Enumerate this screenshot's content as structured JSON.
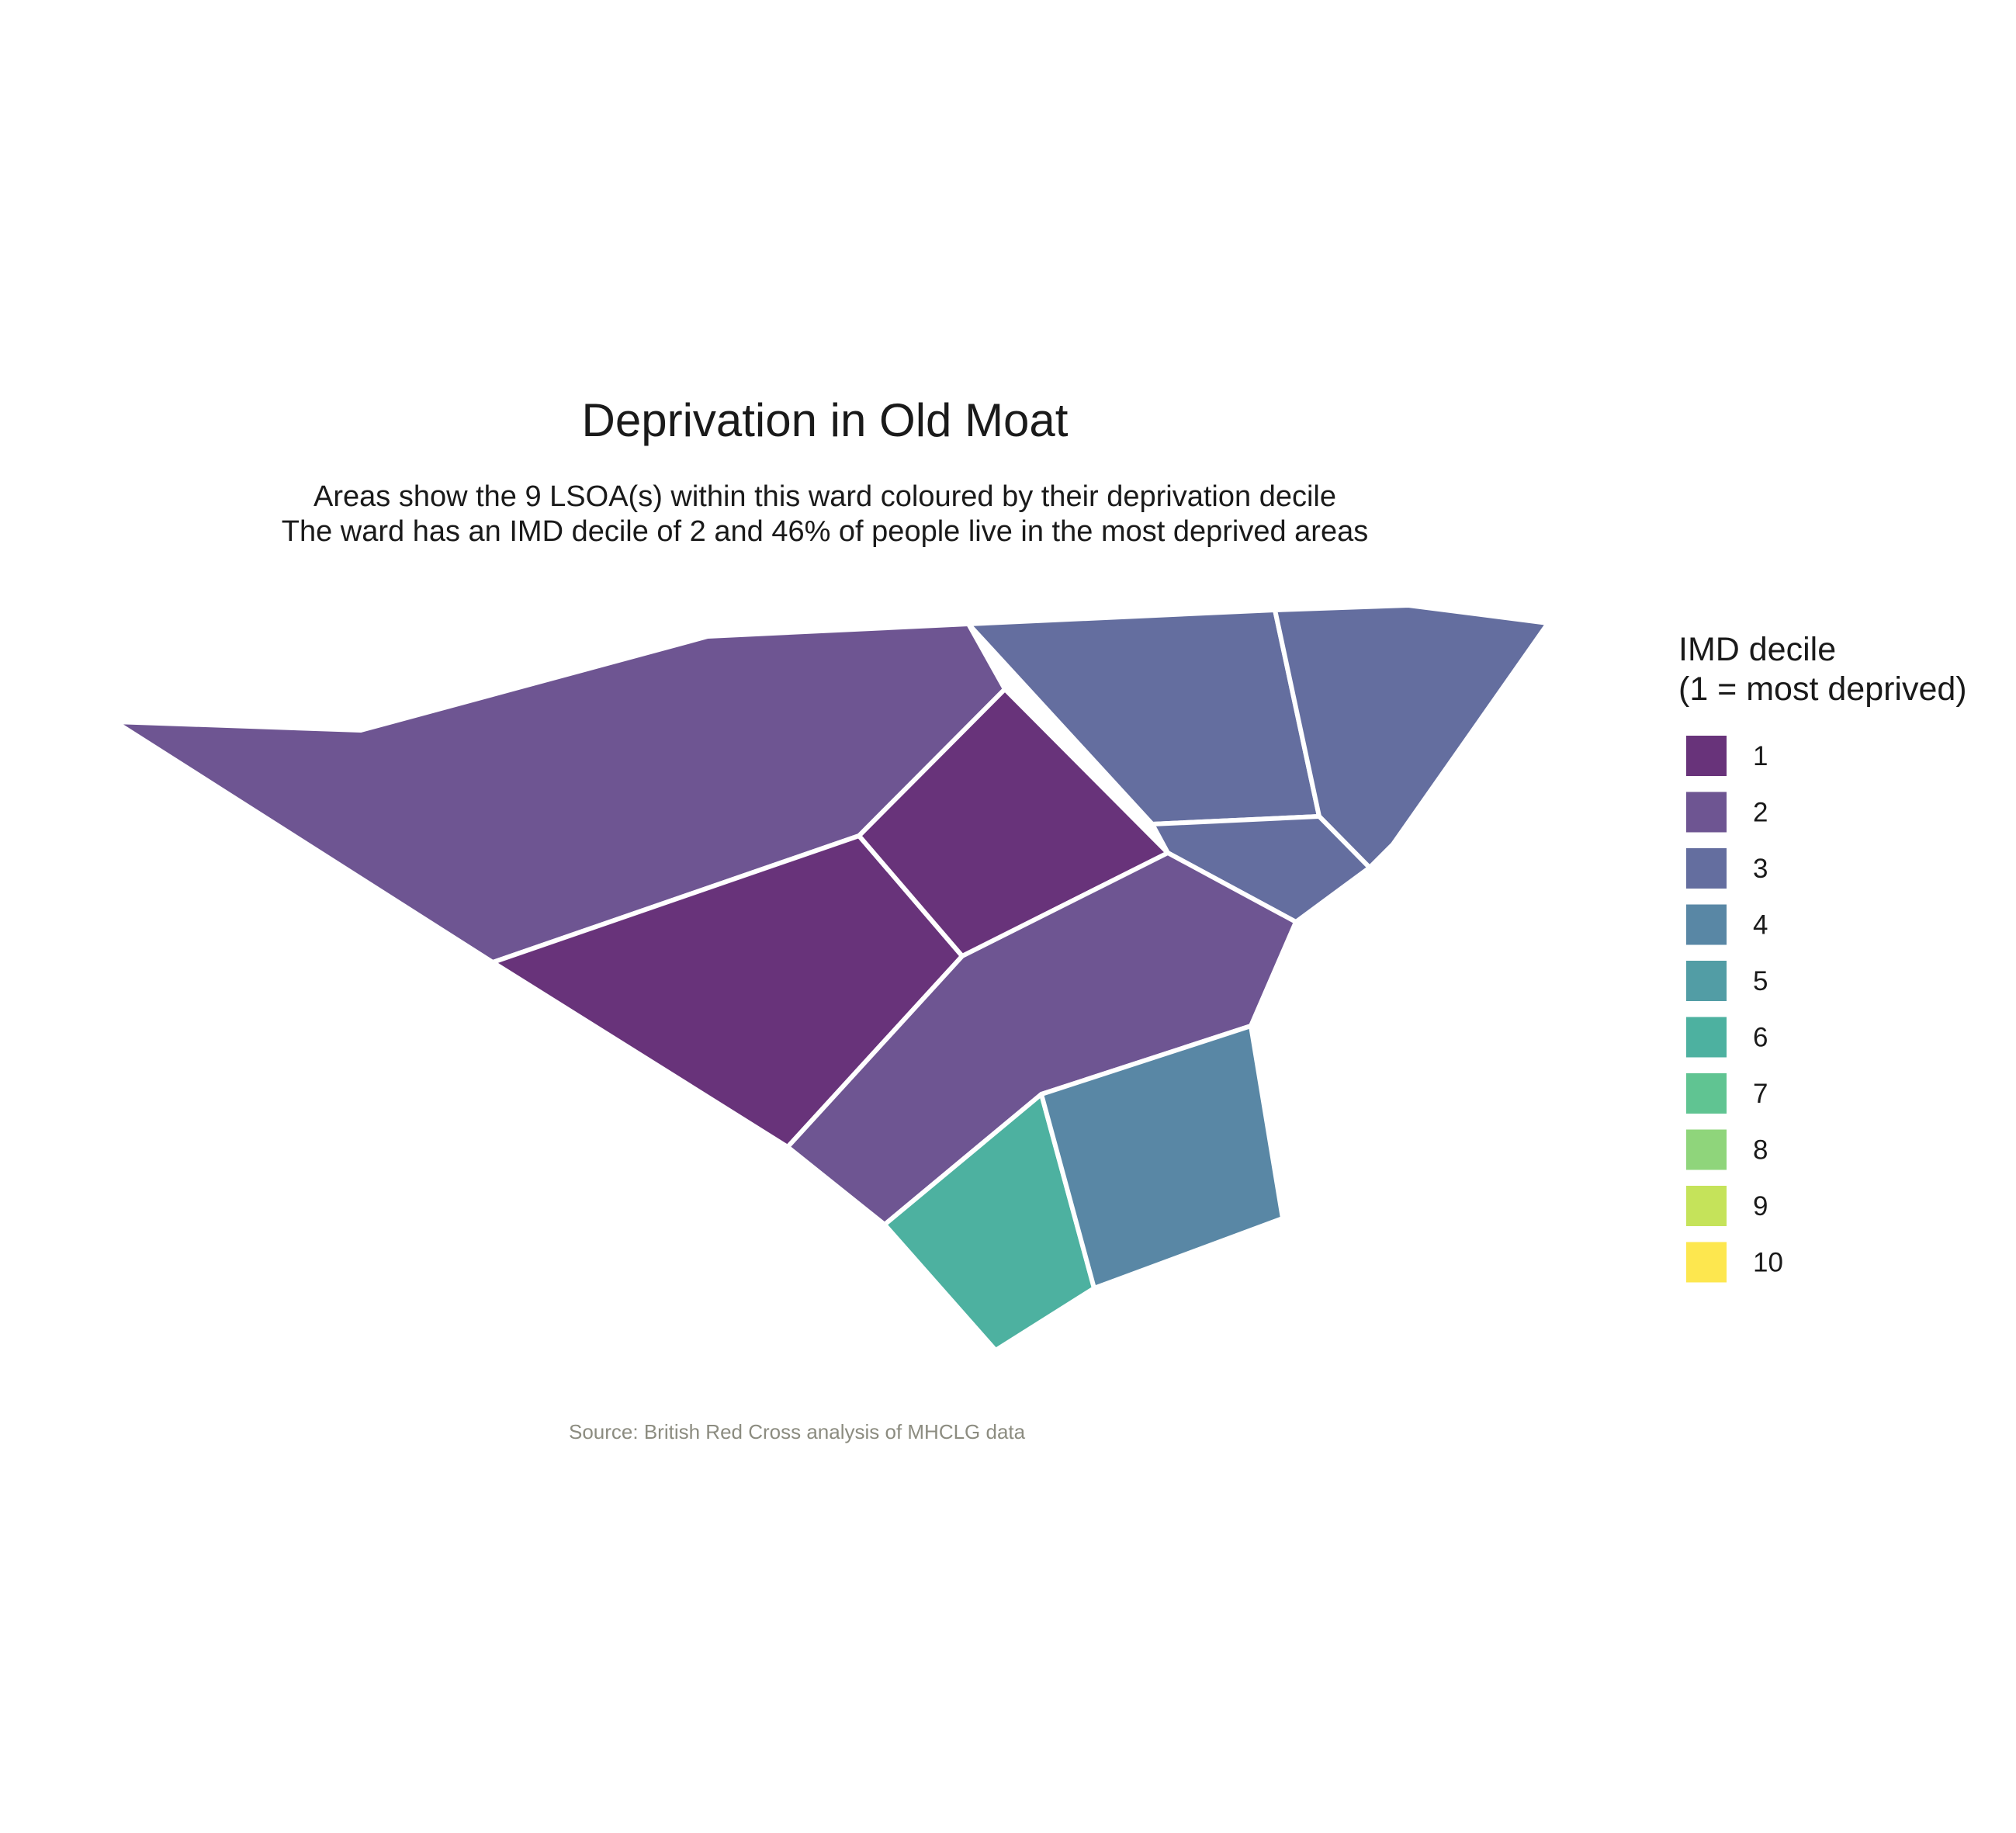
{
  "map": {
    "title": "Deprivation in Old Moat",
    "subtitle_lines": [
      "Areas show the 9 LSOA(s) within this ward coloured by their deprivation decile",
      "The ward has an IMD decile of 2 and 46% of people live in the most deprived areas"
    ],
    "caption": "Source: British Red Cross analysis of MHCLG data",
    "legend": {
      "title_lines": [
        "IMD decile",
        "(1 = most deprived)"
      ],
      "items": [
        {
          "label": "1",
          "color": "#68337a"
        },
        {
          "label": "2",
          "color": "#6e5592"
        },
        {
          "label": "3",
          "color": "#646e9f"
        },
        {
          "label": "4",
          "color": "#5987a5"
        },
        {
          "label": "5",
          "color": "#529da5"
        },
        {
          "label": "6",
          "color": "#4db1a0"
        },
        {
          "label": "7",
          "color": "#60c492"
        },
        {
          "label": "8",
          "color": "#8fd57b"
        },
        {
          "label": "9",
          "color": "#c5e35a"
        },
        {
          "label": "10",
          "color": "#fde74f"
        }
      ]
    },
    "areas": [
      {
        "decile": 2
      },
      {
        "decile": 1
      },
      {
        "decile": 1
      },
      {
        "decile": 3
      },
      {
        "decile": 3
      },
      {
        "decile": 3
      },
      {
        "decile": 2
      },
      {
        "decile": 6
      },
      {
        "decile": 4
      }
    ]
  }
}
